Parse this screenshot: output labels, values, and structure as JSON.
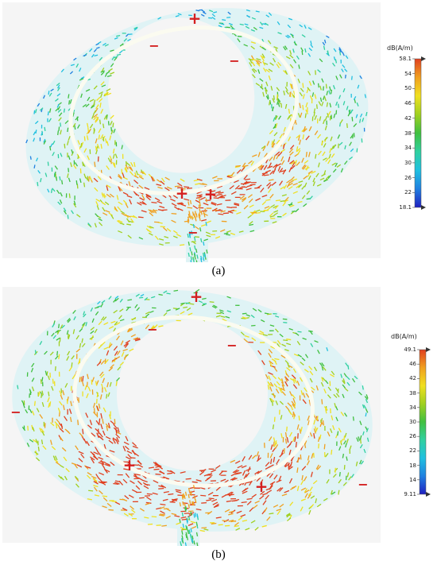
{
  "panels": [
    {
      "caption": "(a)",
      "colorbar": {
        "unit": "dB(A/m)",
        "max": "58.1",
        "min": "18.1",
        "ticks": [
          "58.1",
          "54",
          "50",
          "46",
          "42",
          "38",
          "34",
          "30",
          "26",
          "22",
          "18.1"
        ]
      },
      "markers": [
        "+",
        "−",
        "−",
        "+",
        "+",
        "−"
      ]
    },
    {
      "caption": "(b)",
      "colorbar": {
        "unit": "dB(A/m)",
        "max": "49.1",
        "min": "9.11",
        "ticks": [
          "49.1",
          "46",
          "42",
          "38",
          "34",
          "30",
          "26",
          "22",
          "18",
          "14",
          "9.11"
        ]
      },
      "markers": [
        "+",
        "−",
        "−",
        "−",
        "+",
        "+",
        "−"
      ]
    }
  ],
  "colors": {
    "colormap": [
      "#2020c0",
      "#2080e0",
      "#20c0e0",
      "#30d0a0",
      "#40c040",
      "#a0d020",
      "#f0e020",
      "#f0a020",
      "#e04020"
    ],
    "marker": "#d42020",
    "plot_bg": "#f5f5f5"
  }
}
